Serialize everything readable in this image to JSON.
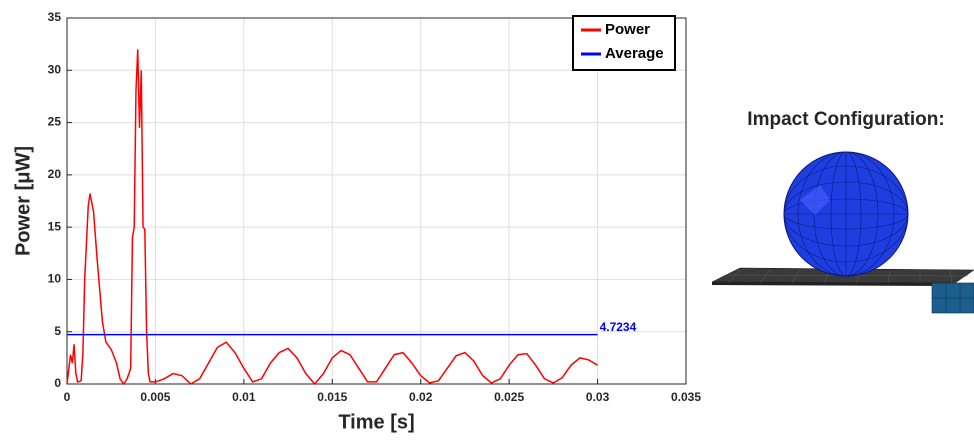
{
  "chart_data": {
    "type": "line",
    "xlabel": "Time [s]",
    "ylabel": "Power [μW]",
    "xlim": [
      0,
      0.035
    ],
    "xticks": [
      0,
      0.005,
      0.01,
      0.015,
      0.02,
      0.025,
      0.03,
      0.035
    ],
    "ylim": [
      0,
      35
    ],
    "yticks": [
      0,
      5,
      10,
      15,
      20,
      25,
      30,
      35
    ],
    "grid": true,
    "legend": "upper right",
    "series": [
      {
        "name": "Power",
        "color": "#ff0000",
        "x": [
          0,
          0.0002,
          0.0003,
          0.0004,
          0.0005,
          0.0006,
          0.0008,
          0.0009,
          0.001,
          0.0012,
          0.0013,
          0.0015,
          0.0017,
          0.002,
          0.0022,
          0.0025,
          0.0028,
          0.003,
          0.0032,
          0.0034,
          0.0036,
          0.0037,
          0.0038,
          0.0039,
          0.004,
          0.0041,
          0.0042,
          0.0043,
          0.0044,
          0.0045,
          0.0046,
          0.0047,
          0.005,
          0.0055,
          0.006,
          0.0065,
          0.007,
          0.0075,
          0.008,
          0.0085,
          0.009,
          0.0095,
          0.01,
          0.0105,
          0.011,
          0.0115,
          0.012,
          0.0125,
          0.013,
          0.0135,
          0.014,
          0.0145,
          0.015,
          0.0155,
          0.016,
          0.0165,
          0.017,
          0.0175,
          0.018,
          0.0185,
          0.019,
          0.0195,
          0.02,
          0.0205,
          0.021,
          0.0215,
          0.022,
          0.0225,
          0.023,
          0.0235,
          0.024,
          0.0245,
          0.025,
          0.0255,
          0.026,
          0.0265,
          0.027,
          0.0275,
          0.028,
          0.0285,
          0.029,
          0.0295,
          0.03
        ],
        "values": [
          0,
          2.8,
          2,
          3.8,
          1,
          0.2,
          0.3,
          3,
          10,
          17,
          18.2,
          16.5,
          12,
          6,
          4,
          3.3,
          2,
          0.5,
          0,
          0.5,
          1.5,
          14,
          15,
          28,
          32,
          24.5,
          30,
          15,
          14.8,
          5,
          1,
          0.2,
          0.2,
          0.5,
          1,
          0.8,
          0,
          0.5,
          2,
          3.5,
          4,
          3,
          1.5,
          0.2,
          0.5,
          2,
          3,
          3.4,
          2.5,
          1,
          0,
          1,
          2.5,
          3.2,
          2.8,
          1.5,
          0.2,
          0.2,
          1.5,
          2.8,
          3,
          2,
          0.8,
          0.1,
          0.3,
          1.5,
          2.7,
          3,
          2.2,
          0.8,
          0.1,
          0.5,
          1.8,
          2.8,
          2.9,
          1.8,
          0.5,
          0.1,
          0.6,
          1.8,
          2.5,
          2.3,
          1.8
        ]
      },
      {
        "name": "Average",
        "color": "#0000ff",
        "x": [
          0,
          0.03
        ],
        "values": [
          4.7234,
          4.7234
        ]
      }
    ]
  },
  "panel": {
    "title": "Impact Configuration:"
  }
}
